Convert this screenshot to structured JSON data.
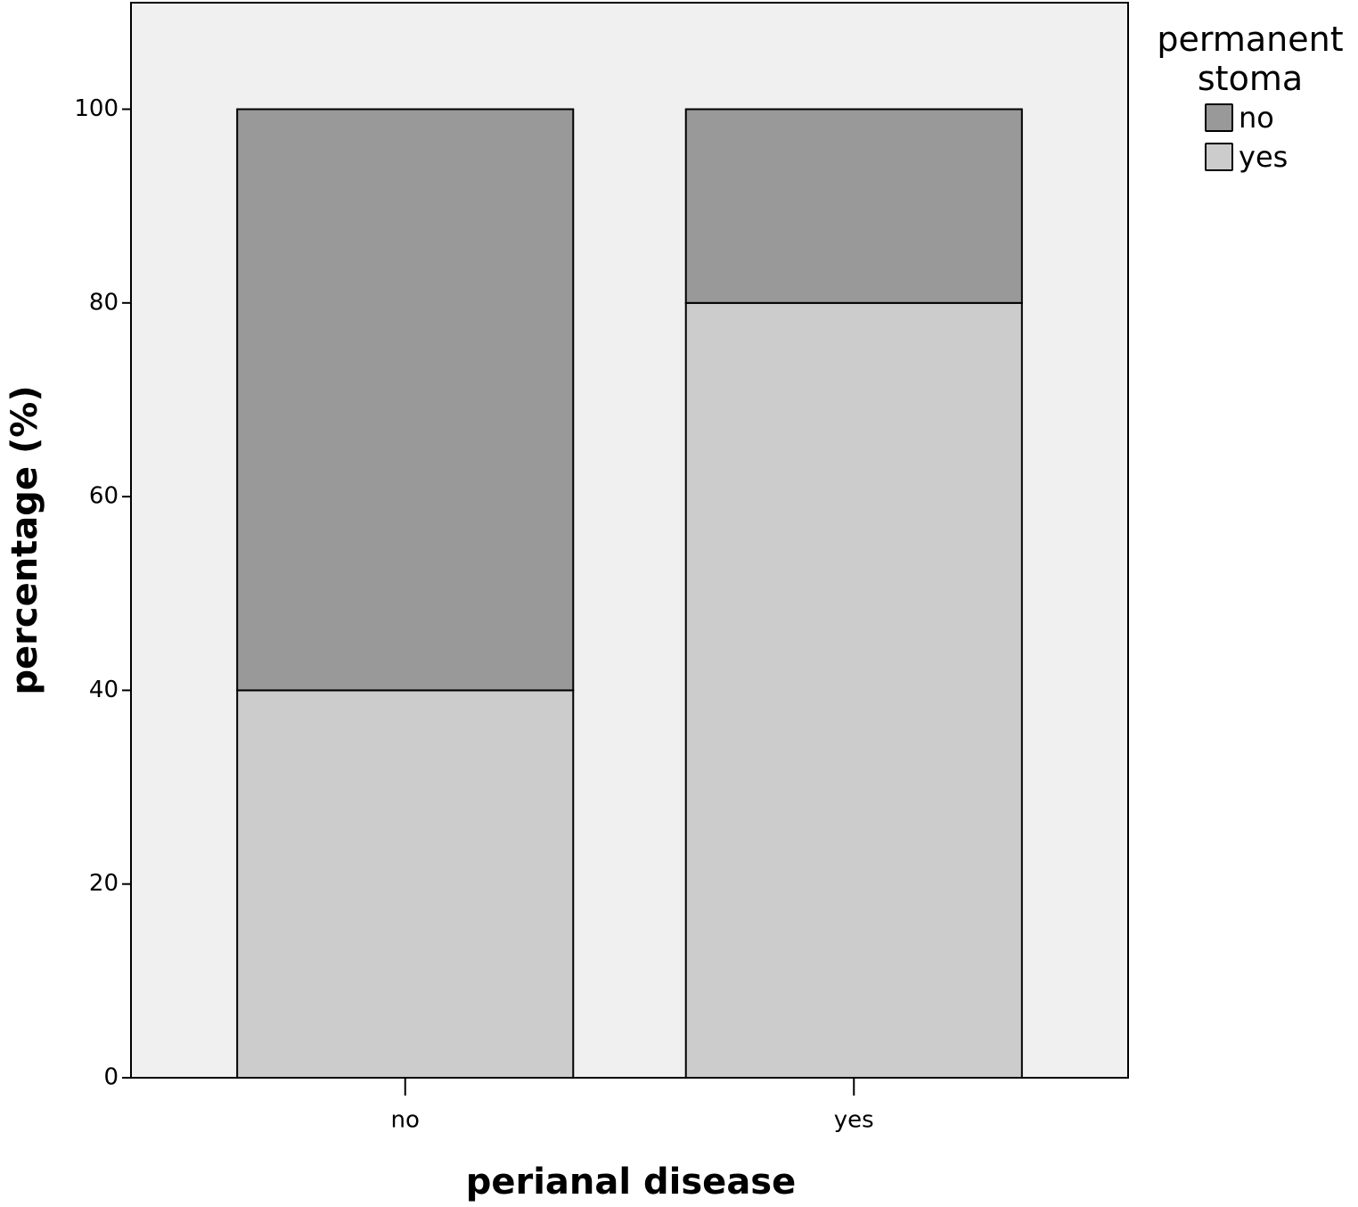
{
  "chart_data": {
    "type": "stacked_bar",
    "x_label": "perianal disease",
    "y_label": "percentage (%)",
    "legend_title": "permanent stoma",
    "legend_position": "outside-top-right",
    "categories": [
      "no",
      "yes"
    ],
    "series": [
      {
        "name": "no",
        "color": "#999999",
        "values": [
          60,
          20
        ]
      },
      {
        "name": "yes",
        "color": "#cccccc",
        "values": [
          40,
          80
        ]
      }
    ],
    "ylim": [
      0,
      111
    ],
    "yticks": [
      0,
      20,
      40,
      60,
      80,
      100
    ],
    "background": "#f0f0f0"
  }
}
